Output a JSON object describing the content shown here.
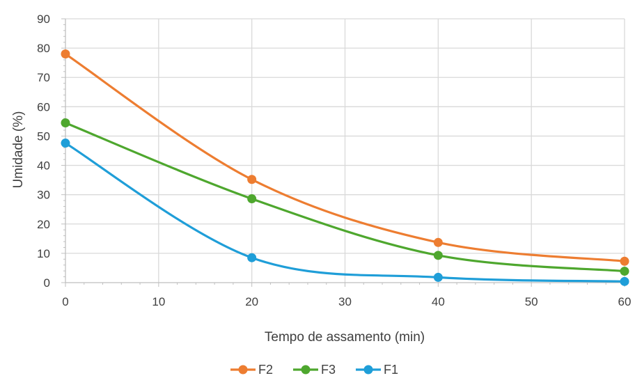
{
  "chart_data": {
    "type": "line",
    "xlabel": "Tempo de assamento (min)",
    "ylabel": "Umidade (%)",
    "xlim": [
      0,
      60
    ],
    "ylim": [
      0,
      90
    ],
    "x_ticks": [
      "0",
      "10",
      "20",
      "30",
      "40",
      "50",
      "60"
    ],
    "y_ticks": [
      "0",
      "10",
      "20",
      "30",
      "40",
      "50",
      "60",
      "70",
      "80",
      "90"
    ],
    "x": [
      0,
      20,
      40,
      60
    ],
    "grid": true,
    "legend_position": "bottom",
    "series": [
      {
        "name": "F2",
        "color": "#ED7D31",
        "values": [
          78,
          35.2,
          13.7,
          7.3
        ]
      },
      {
        "name": "F3",
        "color": "#4EA72E",
        "values": [
          54.5,
          28.6,
          9.3,
          3.9
        ]
      },
      {
        "name": "F1",
        "color": "#1F9ED8",
        "values": [
          47.6,
          8.5,
          1.8,
          0.4
        ]
      }
    ]
  }
}
